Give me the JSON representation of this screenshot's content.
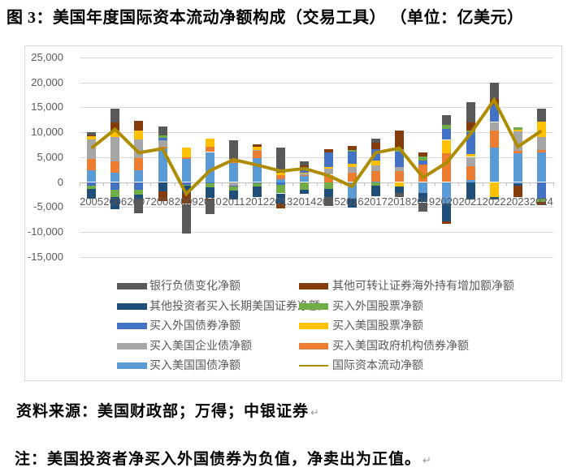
{
  "title": "图 3：美国年度国际资本流动净额构成（交易工具） （单位：亿美元）",
  "source_line": "资料来源：美国财政部；万得；中银证券",
  "note_line": "注：美国投资者净买入外国债券为负值，净卖出为正值。",
  "paragraph_mark": "↵",
  "chart_data": {
    "type": "bar",
    "subtype": "stacked-bar-with-line",
    "unit": "亿美元",
    "grid": true,
    "legend_position": "bottom-two-columns",
    "categories": [
      "2005",
      "2006",
      "2007",
      "2008",
      "2009",
      "2010",
      "2011",
      "2012",
      "2013",
      "2014",
      "2015",
      "2016",
      "2017",
      "2018",
      "2019",
      "2020",
      "2021",
      "2022",
      "2023",
      "2024"
    ],
    "ylim": [
      -15000,
      25000
    ],
    "ytick_step": 5000,
    "series": [
      {
        "name": "买入美国国债净额",
        "color": "#5B9BD5",
        "values": [
          2340,
          1900,
          2330,
          6720,
          4650,
          6030,
          3850,
          4850,
          570,
          1250,
          0,
          -3250,
          130,
          0,
          -2160,
          -4340,
          400,
          6850,
          5730,
          5930
        ]
      },
      {
        "name": "买入美国政府机构债券净额",
        "color": "#ED7D31",
        "values": [
          2330,
          2300,
          2510,
          410,
          300,
          1100,
          820,
          1360,
          820,
          100,
          1470,
          1920,
          2080,
          2210,
          3570,
          5730,
          2730,
          3560,
          560,
          550
        ]
      },
      {
        "name": "买入美国企业债净额",
        "color": "#A6A6A6",
        "values": [
          3830,
          4820,
          3650,
          1250,
          0,
          0,
          -650,
          150,
          0,
          350,
          1260,
          1100,
          1200,
          820,
          0,
          0,
          1920,
          1640,
          3930,
          2570
        ]
      },
      {
        "name": "买入美国股票净额",
        "color": "#FFC000",
        "values": [
          800,
          1360,
          1920,
          0,
          1900,
          1640,
          0,
          710,
          540,
          100,
          300,
          600,
          890,
          -950,
          0,
          2740,
          540,
          -2980,
          300,
          3110
        ]
      },
      {
        "name": "买入外国债券净额",
        "color": "#4472C4",
        "values": [
          -700,
          -1610,
          -1610,
          490,
          -500,
          -250,
          -300,
          -200,
          -640,
          1150,
          2900,
          2460,
          2290,
          3110,
          820,
          2180,
          4380,
          3540,
          -400,
          -3250
        ]
      },
      {
        "name": "买入外国股票净额",
        "color": "#70AD47",
        "values": [
          -730,
          -1370,
          -930,
          440,
          -200,
          -820,
          -710,
          -650,
          -1640,
          -1530,
          -1370,
          300,
          -660,
          450,
          820,
          820,
          400,
          0,
          430,
          -700
        ]
      },
      {
        "name": "其他投资者买入长期美国证券净额",
        "color": "#1F4E79",
        "values": [
          -1900,
          -2460,
          -960,
          -1900,
          -1700,
          -2180,
          -1890,
          -2230,
          -2060,
          -770,
          -1610,
          -1910,
          -2190,
          -1250,
          -1910,
          -3550,
          -3440,
          -540,
          -300,
          0
        ]
      },
      {
        "name": "其他可转让证券海外持有增加额净额",
        "color": "#843C0C",
        "values": [
          100,
          1640,
          1920,
          -1930,
          -2000,
          -200,
          0,
          490,
          -990,
          430,
          660,
          810,
          1360,
          3820,
          820,
          -550,
          1640,
          1100,
          -2300,
          -670
        ]
      },
      {
        "name": "银行负债变化净额",
        "color": "#595959",
        "values": [
          550,
          2720,
          -2760,
          1920,
          -5900,
          -3010,
          3800,
          0,
          4920,
          820,
          -1910,
          0,
          820,
          -800,
          -1800,
          1920,
          4100,
          3280,
          0,
          2510
        ]
      }
    ],
    "line_series": {
      "name": "国际资本流动净额",
      "color": "#AE8C00",
      "values": [
        6800,
        10600,
        5900,
        6700,
        -2400,
        2300,
        4500,
        3400,
        2200,
        2700,
        1300,
        -900,
        5900,
        6800,
        900,
        3900,
        9700,
        16500,
        7100,
        10300
      ]
    },
    "legend_columns": [
      [
        "银行负债变化净额",
        "其他投资者买入长期美国证券净额",
        "买入外国债券净额",
        "买入美国企业债净额",
        "买入美国国债净额"
      ],
      [
        "其他可转让证券海外持有增加额净额",
        "买入外国股票净额",
        "买入美国股票净额",
        "买入美国政府机构债券净额",
        "国际资本流动净额"
      ]
    ]
  }
}
